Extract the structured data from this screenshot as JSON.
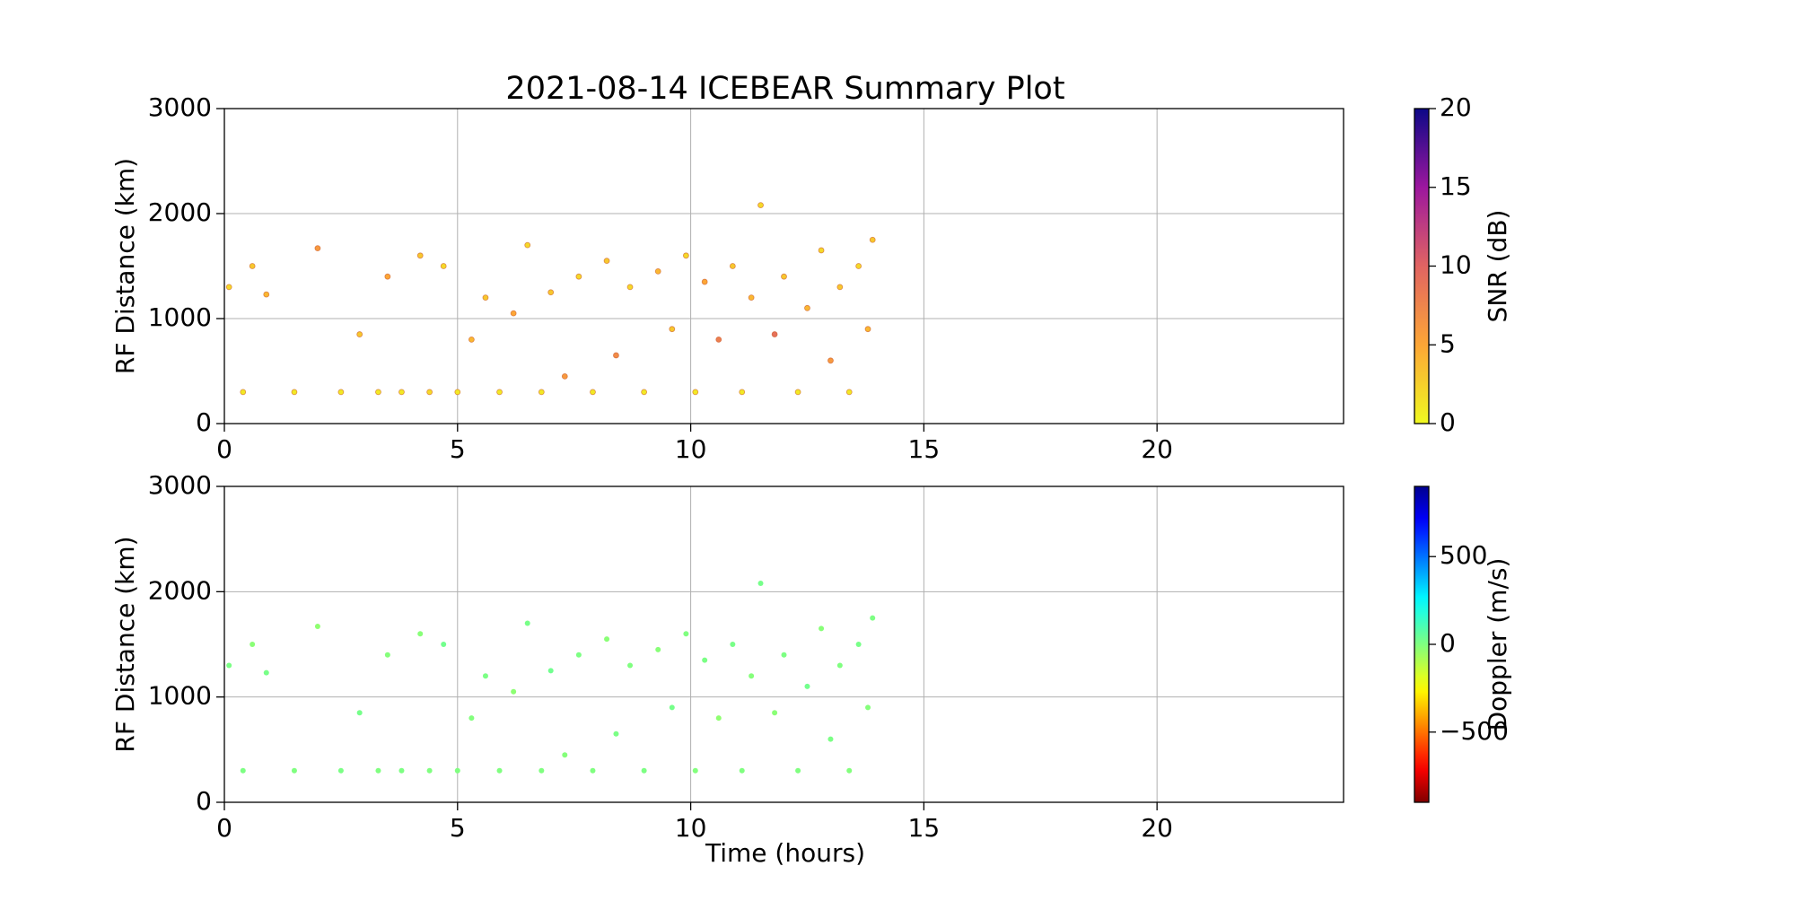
{
  "chart_data": [
    {
      "type": "scatter",
      "title": "2021-08-14 ICEBEAR Summary Plot",
      "y_label": "RF Distance (km)",
      "xlim": [
        0,
        24
      ],
      "xticks": [
        0,
        5,
        10,
        15,
        20
      ],
      "ylim": [
        0,
        3000
      ],
      "yticks": [
        0,
        1000,
        2000,
        3000
      ],
      "grid": true,
      "x": [
        0.1,
        0.4,
        0.6,
        0.9,
        1.5,
        2.0,
        2.5,
        2.9,
        3.3,
        3.5,
        3.8,
        4.2,
        4.4,
        4.7,
        5.0,
        5.3,
        5.6,
        5.9,
        6.2,
        6.5,
        6.8,
        7.0,
        7.3,
        7.6,
        7.9,
        8.2,
        8.4,
        8.7,
        9.0,
        9.3,
        9.6,
        9.9,
        10.1,
        10.3,
        10.6,
        10.9,
        11.1,
        11.3,
        11.5,
        11.8,
        12.0,
        12.3,
        12.5,
        12.8,
        13.0,
        13.2,
        13.4,
        13.6,
        13.8,
        13.9
      ],
      "values": [
        1300,
        300,
        1500,
        1230,
        300,
        1670,
        300,
        850,
        300,
        1400,
        300,
        1600,
        300,
        1500,
        300,
        800,
        1200,
        300,
        1050,
        1700,
        300,
        1250,
        450,
        1400,
        300,
        1550,
        650,
        1300,
        300,
        1450,
        900,
        1600,
        300,
        1350,
        800,
        1500,
        300,
        1200,
        2080,
        850,
        1400,
        300,
        1100,
        1650,
        600,
        1300,
        300,
        1500,
        900,
        1750
      ],
      "color_values": [
        2,
        1,
        3,
        4,
        1,
        6,
        1,
        3,
        1,
        5,
        1,
        3,
        2,
        2,
        1,
        4,
        3,
        1,
        5,
        2,
        1,
        3,
        6,
        2,
        1,
        3,
        7,
        2,
        1,
        4,
        3,
        2,
        1,
        5,
        8,
        3,
        1,
        4,
        2,
        9,
        3,
        1,
        4,
        2,
        6,
        3,
        1,
        2,
        4,
        3
      ],
      "colormap": "plasma_r",
      "colorbar_label": "SNR (dB)",
      "clim": [
        0,
        20
      ],
      "cticks": [
        0,
        5,
        10,
        15,
        20
      ]
    },
    {
      "type": "scatter",
      "y_label": "RF Distance (km)",
      "x_label": "Time (hours)",
      "xlim": [
        0,
        24
      ],
      "xticks": [
        0,
        5,
        10,
        15,
        20
      ],
      "ylim": [
        0,
        3000
      ],
      "yticks": [
        0,
        1000,
        2000,
        3000
      ],
      "grid": true,
      "x": [
        0.1,
        0.4,
        0.6,
        0.9,
        1.5,
        2.0,
        2.5,
        2.9,
        3.3,
        3.5,
        3.8,
        4.2,
        4.4,
        4.7,
        5.0,
        5.3,
        5.6,
        5.9,
        6.2,
        6.5,
        6.8,
        7.0,
        7.3,
        7.6,
        7.9,
        8.2,
        8.4,
        8.7,
        9.0,
        9.3,
        9.6,
        9.9,
        10.1,
        10.3,
        10.6,
        10.9,
        11.1,
        11.3,
        11.5,
        11.8,
        12.0,
        12.3,
        12.5,
        12.8,
        13.0,
        13.2,
        13.4,
        13.6,
        13.8,
        13.9
      ],
      "values": [
        1300,
        300,
        1500,
        1230,
        300,
        1670,
        300,
        850,
        300,
        1400,
        300,
        1600,
        300,
        1500,
        300,
        800,
        1200,
        300,
        1050,
        1700,
        300,
        1250,
        450,
        1400,
        300,
        1550,
        650,
        1300,
        300,
        1450,
        900,
        1600,
        300,
        1350,
        800,
        1500,
        300,
        1200,
        2080,
        850,
        1400,
        300,
        1100,
        1650,
        600,
        1300,
        300,
        1500,
        900,
        1750
      ],
      "color_values": [
        10,
        5,
        -20,
        15,
        0,
        -30,
        10,
        20,
        0,
        -10,
        5,
        -15,
        0,
        25,
        0,
        -5,
        10,
        0,
        -25,
        15,
        0,
        30,
        -10,
        5,
        0,
        -20,
        10,
        0,
        5,
        -15,
        20,
        0,
        -5,
        10,
        -30,
        15,
        0,
        -10,
        20,
        -20,
        5,
        0,
        25,
        -15,
        10,
        0,
        -5,
        15,
        -10,
        5
      ],
      "colormap": "jet_r",
      "colorbar_label": "Doppler (m/s)",
      "clim": [
        -900,
        900
      ],
      "cticks": [
        {
          "value": -500,
          "label": "−500"
        },
        0,
        500
      ]
    }
  ]
}
